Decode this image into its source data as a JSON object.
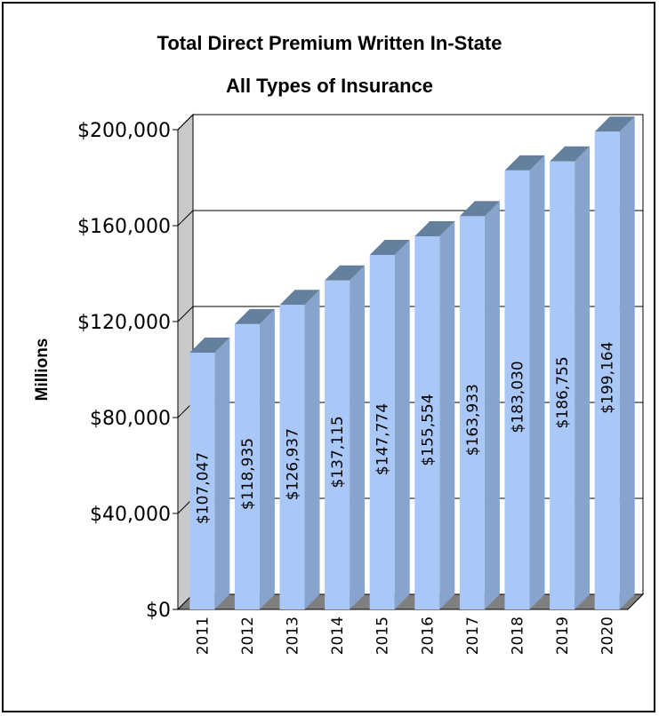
{
  "chart_data": {
    "type": "bar",
    "title": "Total Direct Premium Written In-State",
    "subtitle": "All Types of Insurance",
    "ylabel": "Millions",
    "xlabel": "",
    "ylim": [
      0,
      200000
    ],
    "yticks": [
      0,
      40000,
      80000,
      120000,
      160000,
      200000
    ],
    "ytick_labels": [
      "$0",
      "$40,000",
      "$80,000",
      "$120,000",
      "$160,000",
      "$200,000"
    ],
    "categories": [
      "2011",
      "2012",
      "2013",
      "2014",
      "2015",
      "2016",
      "2017",
      "2018",
      "2019",
      "2020"
    ],
    "values": [
      107047,
      118935,
      126937,
      137115,
      147774,
      155554,
      163933,
      183030,
      186755,
      199164
    ],
    "data_labels": [
      "$107,047",
      "$118,935",
      "$126,937",
      "$137,115",
      "$147,774",
      "$155,554",
      "$163,933",
      "$183,030",
      "$186,755",
      "$199,164"
    ],
    "grid": true,
    "legend": "none",
    "colors": {
      "bar_front": "#a9c8f8",
      "bar_side": "#86a4cc",
      "bar_top": "#64809e",
      "wall": "#c9c9c9",
      "floor": "#7f7f7f"
    }
  }
}
